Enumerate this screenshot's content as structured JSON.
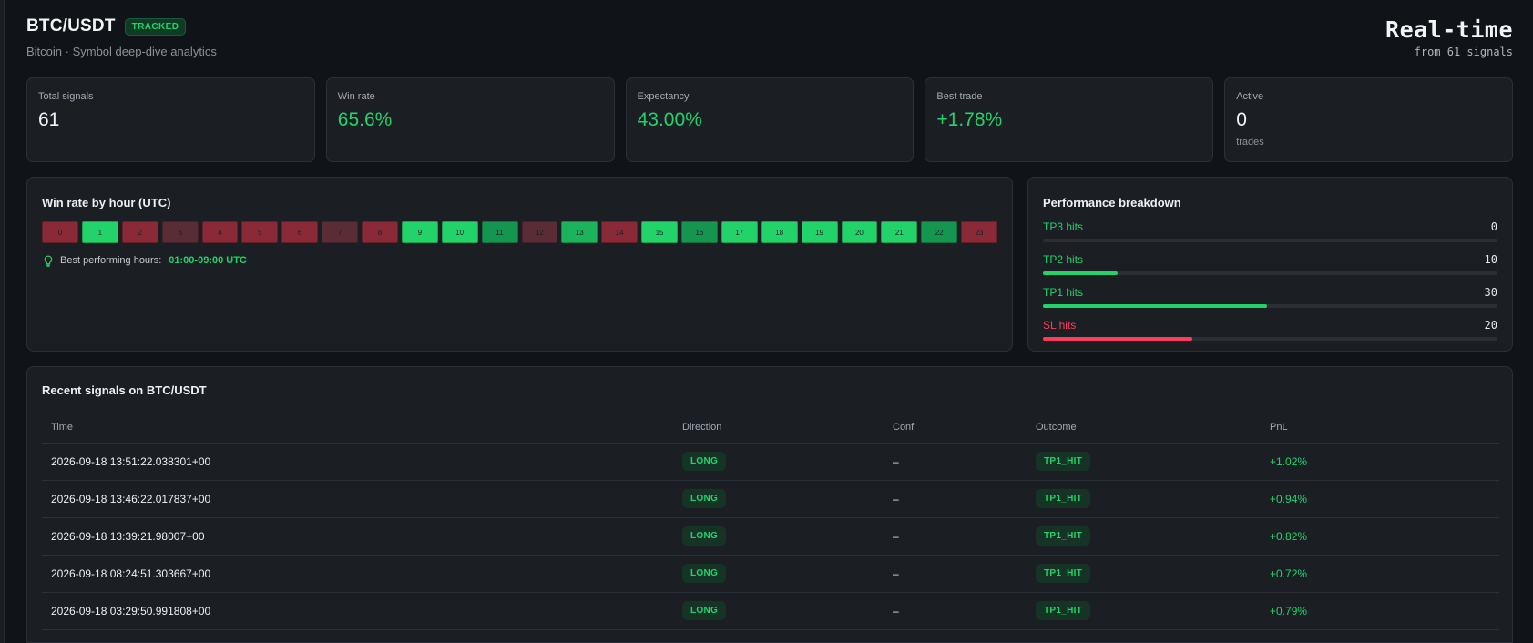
{
  "header": {
    "symbol": "BTC/USDT",
    "badge": "TRACKED",
    "subtitle": "Bitcoin · Symbol deep-dive analytics",
    "realtime_label": "Real-time",
    "from_signals": "from 61 signals"
  },
  "stats": [
    {
      "label": "Total signals",
      "value": "61",
      "sub": ""
    },
    {
      "label": "Win rate",
      "value": "65.6%",
      "sub": ""
    },
    {
      "label": "Expectancy",
      "value": "43.00%",
      "sub": ""
    },
    {
      "label": "Best trade",
      "value": "+1.78%",
      "sub": ""
    },
    {
      "label": "Active",
      "value": "0",
      "sub": "trades"
    }
  ],
  "hours_panel": {
    "title": "Win rate by hour (UTC)",
    "best_label": "Best performing hours:",
    "best_value": "01:00-09:00 UTC",
    "hours": [
      {
        "hour": "0",
        "color": "#8a2a39"
      },
      {
        "hour": "1",
        "color": "#22d36a"
      },
      {
        "hour": "2",
        "color": "#8a2a39"
      },
      {
        "hour": "3",
        "color": "#5a2c35"
      },
      {
        "hour": "4",
        "color": "#8a2a39"
      },
      {
        "hour": "5",
        "color": "#8a2a39"
      },
      {
        "hour": "6",
        "color": "#8a2a39"
      },
      {
        "hour": "7",
        "color": "#5a2c35"
      },
      {
        "hour": "8",
        "color": "#8a2a39"
      },
      {
        "hour": "9",
        "color": "#22d36a"
      },
      {
        "hour": "10",
        "color": "#22d36a"
      },
      {
        "hour": "11",
        "color": "#159650"
      },
      {
        "hour": "12",
        "color": "#5a2c35"
      },
      {
        "hour": "13",
        "color": "#1bb35c"
      },
      {
        "hour": "14",
        "color": "#8a2a39"
      },
      {
        "hour": "15",
        "color": "#22d36a"
      },
      {
        "hour": "16",
        "color": "#159650"
      },
      {
        "hour": "17",
        "color": "#22d36a"
      },
      {
        "hour": "18",
        "color": "#22d36a"
      },
      {
        "hour": "19",
        "color": "#22d36a"
      },
      {
        "hour": "20",
        "color": "#22d36a"
      },
      {
        "hour": "21",
        "color": "#22d36a"
      },
      {
        "hour": "22",
        "color": "#159650"
      },
      {
        "hour": "23",
        "color": "#8a2a39"
      }
    ]
  },
  "performance": {
    "title": "Performance breakdown",
    "rows": [
      {
        "label": "TP3 hits",
        "count": "0",
        "fraction": 0.0,
        "kind": "green"
      },
      {
        "label": "TP2 hits",
        "count": "10",
        "fraction": 0.164,
        "kind": "green"
      },
      {
        "label": "TP1 hits",
        "count": "30",
        "fraction": 0.492,
        "kind": "green"
      },
      {
        "label": "SL hits",
        "count": "20",
        "fraction": 0.328,
        "kind": "red"
      }
    ]
  },
  "signals": {
    "title": "Recent signals on BTC/USDT",
    "columns": [
      "Time",
      "Direction",
      "Conf",
      "Outcome",
      "PnL"
    ],
    "rows": [
      {
        "time": "2026-09-18 13:51:22.038301+00",
        "direction": "LONG",
        "conf": "–",
        "outcome": "TP1_HIT",
        "pnl": "+1.02%"
      },
      {
        "time": "2026-09-18 13:46:22.017837+00",
        "direction": "LONG",
        "conf": "–",
        "outcome": "TP1_HIT",
        "pnl": "+0.94%"
      },
      {
        "time": "2026-09-18 13:39:21.98007+00",
        "direction": "LONG",
        "conf": "–",
        "outcome": "TP1_HIT",
        "pnl": "+0.82%"
      },
      {
        "time": "2026-09-18 08:24:51.303667+00",
        "direction": "LONG",
        "conf": "–",
        "outcome": "TP1_HIT",
        "pnl": "+0.72%"
      },
      {
        "time": "2026-09-18 03:29:50.991808+00",
        "direction": "LONG",
        "conf": "–",
        "outcome": "TP1_HIT",
        "pnl": "+0.79%"
      }
    ]
  },
  "icons": {
    "best_hours": "lightbulb-icon"
  },
  "colors": {
    "accent_green": "#22d36a",
    "accent_red": "#ff3b5c",
    "background": "#101317",
    "card": "#1b1f24"
  }
}
